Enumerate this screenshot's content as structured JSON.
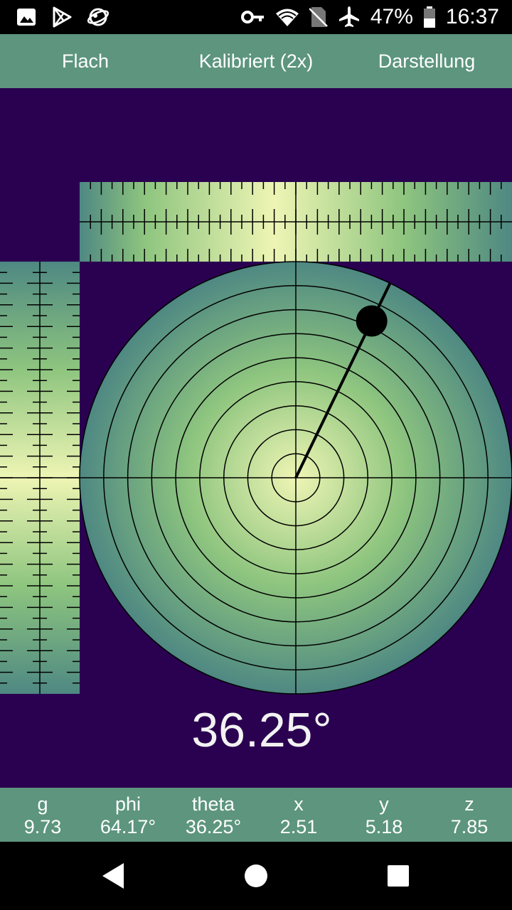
{
  "status_bar": {
    "battery": "47%",
    "time": "16:37",
    "icons": [
      "image-icon",
      "play-store-icon",
      "vpn-globe-icon",
      "key-icon",
      "wifi-icon",
      "no-sim-icon",
      "airplane-icon",
      "battery-icon"
    ]
  },
  "toolbar": {
    "flat_label": "Flach",
    "calibrated_label": "Kalibriert (2x)",
    "display_label": "Darstellung"
  },
  "level": {
    "angle_label": "36.25°",
    "bubble": {
      "theta_deg": 36.25,
      "phi_deg": 64.17,
      "x": 2.51,
      "y": 5.18,
      "z": 7.85
    },
    "colors": {
      "background": "#2a0050",
      "center": "#eef5b4",
      "mid": "#8ec57f",
      "edge": "#4e8882"
    }
  },
  "readout": {
    "g_label": "g",
    "g_value": "9.73",
    "phi_label": "phi",
    "phi_value": "64.17°",
    "theta_label": "theta",
    "theta_value": "36.25°",
    "x_label": "x",
    "x_value": "2.51",
    "y_label": "y",
    "y_value": "5.18",
    "z_label": "z",
    "z_value": "7.85"
  },
  "nav": {
    "icons": [
      "back-icon",
      "home-icon",
      "recents-icon"
    ]
  }
}
